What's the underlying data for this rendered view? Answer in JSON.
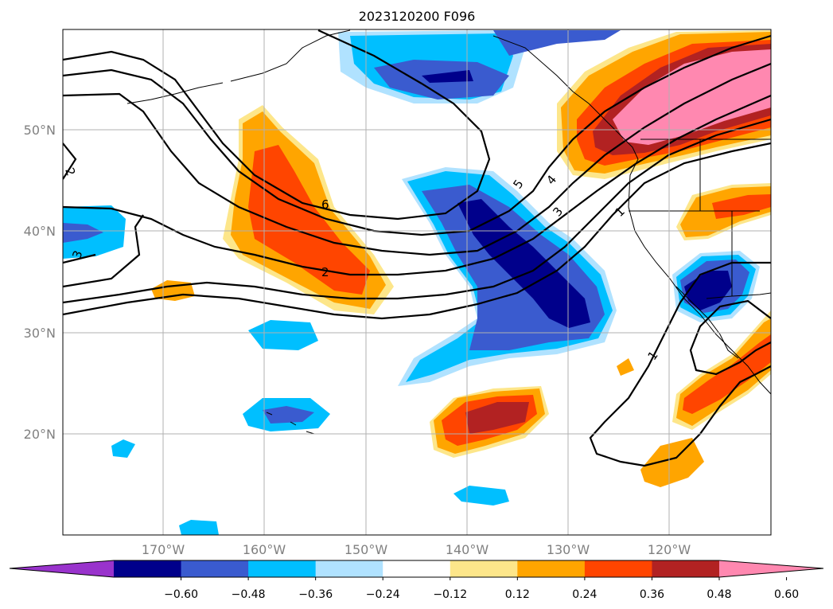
{
  "title": "2023120200 F096",
  "map": {
    "lat_labels": [
      "50°N",
      "40°N",
      "30°N",
      "20°N"
    ],
    "lon_labels": [
      "170°W",
      "160°W",
      "150°W",
      "140°W",
      "130°W",
      "120°W"
    ],
    "contour_labels": [
      "6",
      "2",
      "2",
      "3",
      "5",
      "4",
      "3",
      "1",
      "1"
    ]
  },
  "colorbar": {
    "ticks": [
      "−0.60",
      "−0.48",
      "−0.36",
      "−0.24",
      "−0.12",
      "0.12",
      "0.24",
      "0.36",
      "0.48",
      "0.60"
    ],
    "colors": {
      "under": "#9933cc",
      "neg_060": "#00008b",
      "neg_048": "#3a5bcf",
      "neg_036": "#00bfff",
      "neg_024": "#b0e2ff",
      "neutral": "#ffffff",
      "pos_012": "#fde68a",
      "pos_024": "#ffa500",
      "pos_036": "#ff4500",
      "pos_048": "#b22222",
      "over": "#ff88b0"
    }
  }
}
